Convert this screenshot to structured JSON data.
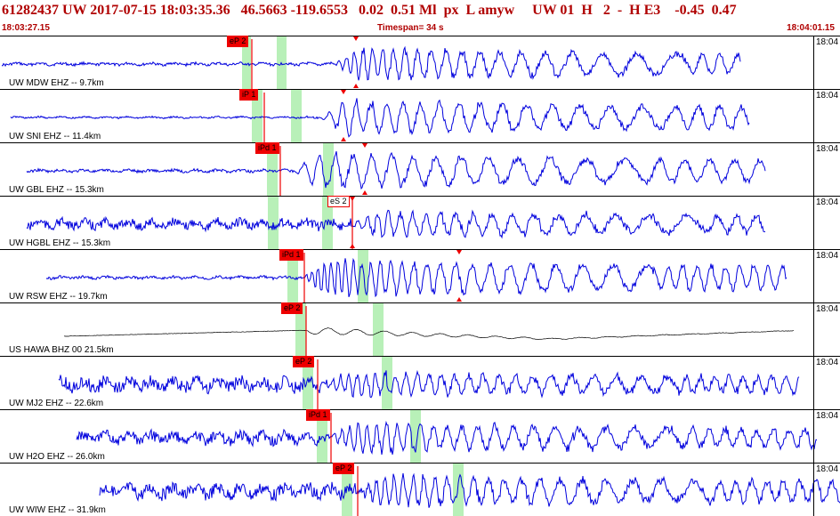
{
  "header": {
    "title": "61282437 UW 2017-07-15 18:03:35.36   46.5663 -119.6553   0.02  0.51 Ml  px  L amyw     UW 01  H   2  -  H E3    -0.45  0.47",
    "start_time": "18:03:27.15",
    "timespan": "Timespan=  34 s",
    "end_time": "18:04:01.15"
  },
  "colors": {
    "header_text": "#b00000",
    "trace": "#0000dd",
    "trace_alt": "#000000",
    "pick": "#ee0000",
    "window": "#b8f0b8"
  },
  "panels": [
    {
      "label": "UW MDW EHZ -- 9.7km",
      "y_label": "18:04",
      "pick_text": "eP 2",
      "pick_style": "flag-red",
      "trace_color": "blue"
    },
    {
      "label": "UW SNI EHZ -- 11.4km",
      "y_label": "18:04",
      "pick_text": "iP 1",
      "pick_style": "flag-red",
      "trace_color": "blue"
    },
    {
      "label": "UW GBL EHZ -- 15.3km",
      "y_label": "18:04",
      "pick_text": "iPd 1",
      "pick_style": "flag-red",
      "trace_color": "blue"
    },
    {
      "label": "UW HGBL EHZ -- 15.3km",
      "y_label": "18:04",
      "pick_text": "eS 2",
      "pick_style": "flag-white",
      "trace_color": "blue"
    },
    {
      "label": "UW RSW EHZ -- 19.7km",
      "y_label": "18:04",
      "pick_text": "iPd 1",
      "pick_style": "flag-red",
      "trace_color": "blue"
    },
    {
      "label": "US HAWA BHZ 00 21.5km",
      "y_label": "18:04",
      "pick_text": "eP 2",
      "pick_style": "flag-red",
      "trace_color": "black"
    },
    {
      "label": "UW MJ2 EHZ -- 22.6km",
      "y_label": "18:04",
      "pick_text": "eP 2",
      "pick_style": "flag-red",
      "trace_color": "blue"
    },
    {
      "label": "UW H2O EHZ -- 26.0km",
      "y_label": "18:04",
      "pick_text": "iPd 1",
      "pick_style": "flag-red",
      "trace_color": "blue"
    },
    {
      "label": "UW WIW EHZ -- 31.9km",
      "y_label": "18:04",
      "pick_text": "eP 2",
      "pick_style": "flag-red",
      "trace_color": "blue"
    }
  ]
}
